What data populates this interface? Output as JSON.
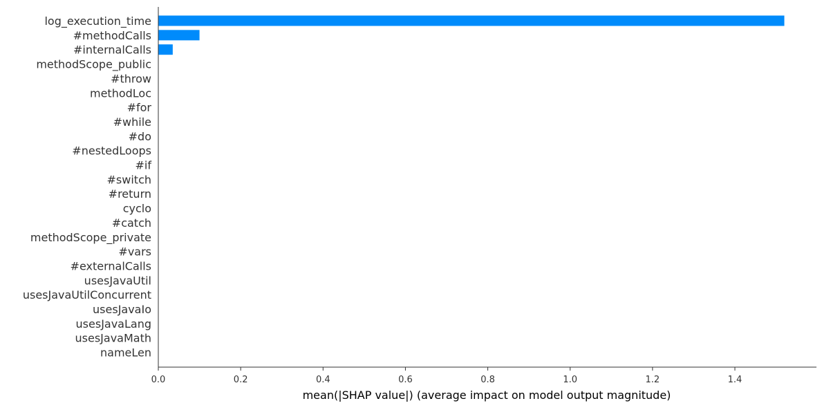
{
  "chart_data": {
    "type": "bar",
    "orientation": "horizontal",
    "categories": [
      "log_execution_time",
      "#methodCalls",
      "#internalCalls",
      "methodScope_public",
      "#throw",
      "methodLoc",
      "#for",
      "#while",
      "#do",
      "#nestedLoops",
      "#if",
      "#switch",
      "#return",
      "cyclo",
      "#catch",
      "methodScope_private",
      "#vars",
      "#externalCalls",
      "usesJavaUtil",
      "usesJavaUtilConcurrent",
      "usesJavaIo",
      "usesJavaLang",
      "usesJavaMath",
      "nameLen"
    ],
    "values": [
      1.52,
      0.1,
      0.035,
      0,
      0,
      0,
      0,
      0,
      0,
      0,
      0,
      0,
      0,
      0,
      0,
      0,
      0,
      0,
      0,
      0,
      0,
      0,
      0,
      0
    ],
    "xlabel": "mean(|SHAP value|) (average impact on model output magnitude)",
    "ylabel": "",
    "xlim": [
      0,
      1.6
    ],
    "xticks": [
      0.0,
      0.2,
      0.4,
      0.6,
      0.8,
      1.0,
      1.2,
      1.4
    ],
    "xtick_labels": [
      "0.0",
      "0.2",
      "0.4",
      "0.6",
      "0.8",
      "1.0",
      "1.2",
      "1.4"
    ],
    "grid": false,
    "bar_color": "#008bfb"
  }
}
